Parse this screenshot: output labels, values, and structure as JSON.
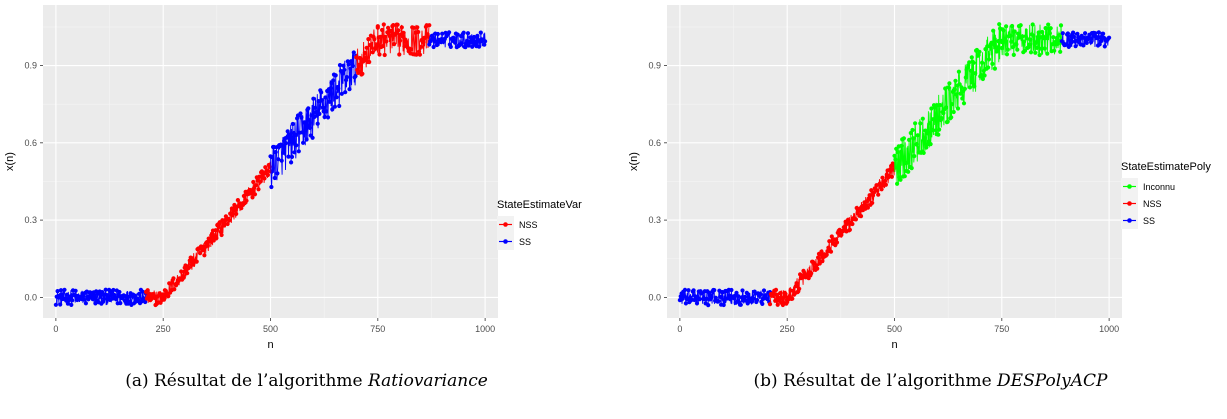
{
  "chart_data": [
    {
      "type": "line",
      "id": "a",
      "xlabel": "n",
      "ylabel": "x(n)",
      "xlim": [
        -30,
        1030
      ],
      "ylim": [
        -0.08,
        1.135
      ],
      "x_ticks": [
        0,
        250,
        500,
        750,
        1000
      ],
      "x_tick_labels": [
        "0",
        "250",
        "500",
        "750",
        "1000"
      ],
      "y_ticks": [
        0.0,
        0.3,
        0.6,
        0.9
      ],
      "y_tick_labels": [
        "0.0",
        "0.3",
        "0.6",
        "0.9"
      ],
      "grid": true,
      "legend": {
        "title": "StateEstimateVar",
        "placement": "right",
        "entries": [
          {
            "name": "NSS",
            "color": "#ff0000"
          },
          {
            "name": "SS",
            "color": "#0000ff"
          }
        ]
      },
      "noise_amplitude": 0.03,
      "segments": [
        {
          "series": "SS",
          "color": "#0000ff",
          "n_start": 0,
          "n_end": 210,
          "shape": "flat",
          "level": 0.0
        },
        {
          "series": "NSS",
          "color": "#ff0000",
          "n_start": 210,
          "n_end": 250,
          "shape": "flat",
          "level": 0.0
        },
        {
          "series": "NSS",
          "color": "#ff0000",
          "n_start": 250,
          "n_end": 500,
          "shape": "ramp",
          "level_start": 0.0,
          "level_end": 0.5
        },
        {
          "series": "SS",
          "color": "#0000ff",
          "n_start": 500,
          "n_end": 700,
          "shape": "ramp",
          "level_start": 0.5,
          "level_end": 0.9,
          "noise": 0.08
        },
        {
          "series": "NSS",
          "color": "#ff0000",
          "n_start": 700,
          "n_end": 750,
          "shape": "ramp",
          "level_start": 0.9,
          "level_end": 1.0,
          "noise": 0.06
        },
        {
          "series": "NSS",
          "color": "#ff0000",
          "n_start": 750,
          "n_end": 870,
          "shape": "flat",
          "level": 1.0,
          "noise": 0.06
        },
        {
          "series": "SS",
          "color": "#0000ff",
          "n_start": 870,
          "n_end": 1000,
          "shape": "flat",
          "level": 1.0
        }
      ]
    },
    {
      "type": "line",
      "id": "b",
      "xlabel": "n",
      "ylabel": "x(n)",
      "xlim": [
        -30,
        1030
      ],
      "ylim": [
        -0.08,
        1.135
      ],
      "x_ticks": [
        0,
        250,
        500,
        750,
        1000
      ],
      "x_tick_labels": [
        "0",
        "250",
        "500",
        "750",
        "1000"
      ],
      "y_ticks": [
        0.0,
        0.3,
        0.6,
        0.9
      ],
      "y_tick_labels": [
        "0.0",
        "0.3",
        "0.6",
        "0.9"
      ],
      "grid": true,
      "legend": {
        "title": "StateEstimatePoly",
        "placement": "right",
        "entries": [
          {
            "name": "Inconnu",
            "color": "#00ff00"
          },
          {
            "name": "NSS",
            "color": "#ff0000"
          },
          {
            "name": "SS",
            "color": "#0000ff"
          }
        ]
      },
      "noise_amplitude": 0.03,
      "segments": [
        {
          "series": "SS",
          "color": "#0000ff",
          "n_start": 0,
          "n_end": 210,
          "shape": "flat",
          "level": 0.0
        },
        {
          "series": "NSS",
          "color": "#ff0000",
          "n_start": 210,
          "n_end": 250,
          "shape": "flat",
          "level": 0.0
        },
        {
          "series": "NSS",
          "color": "#ff0000",
          "n_start": 250,
          "n_end": 500,
          "shape": "ramp",
          "level_start": 0.0,
          "level_end": 0.5
        },
        {
          "series": "Inconnu",
          "color": "#00ff00",
          "n_start": 500,
          "n_end": 750,
          "shape": "ramp",
          "level_start": 0.5,
          "level_end": 1.0,
          "noise": 0.08
        },
        {
          "series": "Inconnu",
          "color": "#00ff00",
          "n_start": 750,
          "n_end": 890,
          "shape": "flat",
          "level": 1.0,
          "noise": 0.06
        },
        {
          "series": "SS",
          "color": "#0000ff",
          "n_start": 890,
          "n_end": 1000,
          "shape": "flat",
          "level": 1.0
        }
      ]
    }
  ],
  "captions": {
    "a": {
      "prefix": "(a) Résultat de l’algorithme ",
      "algo": "Ratiovariance"
    },
    "b": {
      "prefix": "(b) Résultat de l’algorithme ",
      "algo": "DESPolyACP"
    }
  },
  "colors": {
    "panel_bg": "#ebebeb",
    "grid_major": "#ffffff",
    "grid_minor": "#f5f5f5"
  }
}
